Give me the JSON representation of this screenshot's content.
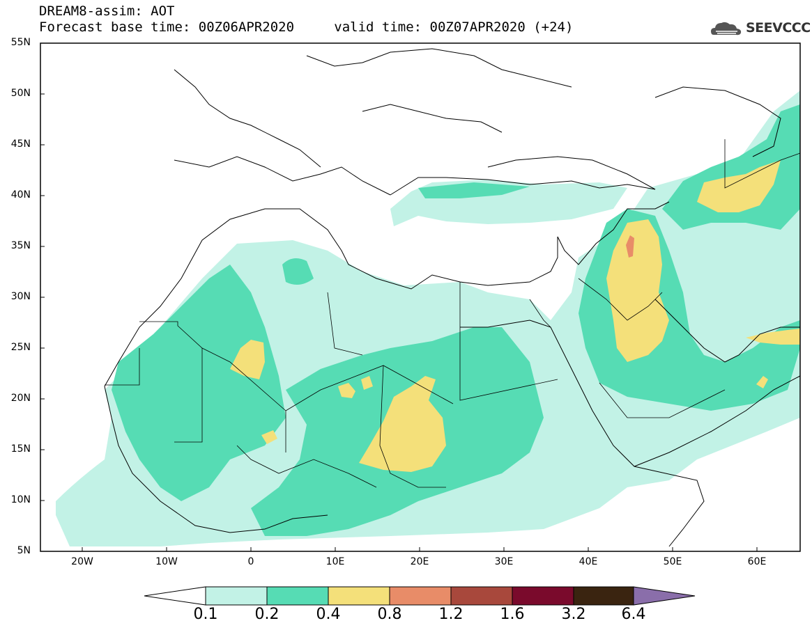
{
  "header": {
    "title": "DREAM8-assim: AOT",
    "base_time_label": "Forecast base time: 00Z06APR2020",
    "valid_time_label": "valid time: 00Z07APR2020 (+24)"
  },
  "logo": {
    "text": "SEEVCCC",
    "icon": "cloud-icon"
  },
  "map": {
    "lon_range": [
      -25,
      65
    ],
    "lat_range": [
      5,
      55
    ],
    "lat_ticks": [
      "55N",
      "50N",
      "45N",
      "40N",
      "35N",
      "30N",
      "25N",
      "20N",
      "15N",
      "10N",
      "5N"
    ],
    "lon_ticks": [
      "20W",
      "10W",
      "0",
      "10E",
      "20E",
      "30E",
      "40E",
      "50E",
      "60E"
    ]
  },
  "colorbar": {
    "labels": [
      "0.1",
      "0.2",
      "0.4",
      "0.8",
      "1.2",
      "1.6",
      "3.2",
      "6.4"
    ],
    "colors": [
      "#ffffff",
      "#c2f2e6",
      "#56dcb4",
      "#f4e07a",
      "#e88c68",
      "#a8483c",
      "#7a0a2c",
      "#3a2410",
      "#8a6eaa"
    ]
  }
}
